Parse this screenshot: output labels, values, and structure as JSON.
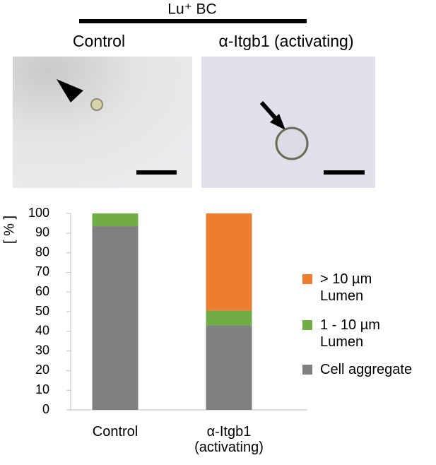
{
  "figure": {
    "header": "Lu⁺ BC",
    "panels": [
      "Control",
      "α-Itgb1 (activating)"
    ]
  },
  "chart_data": {
    "type": "stacked-bar",
    "ylabel": "[ % ]",
    "categories": [
      "Control",
      "α-Itgb1 (activating)"
    ],
    "series": [
      {
        "name": "Cell aggregate",
        "color": "#808080",
        "values": [
          93.5,
          43
        ]
      },
      {
        "name": "1 - 10 µm Lumen",
        "color": "#70ad47",
        "values": [
          6.5,
          7.5
        ]
      },
      {
        "name": "> 10 µm Lumen",
        "color": "#ed7d31",
        "values": [
          0,
          49.5
        ]
      }
    ],
    "ylim": [
      0,
      100
    ],
    "yticks": [
      0,
      10,
      20,
      30,
      40,
      50,
      60,
      70,
      80,
      90,
      100
    ]
  }
}
